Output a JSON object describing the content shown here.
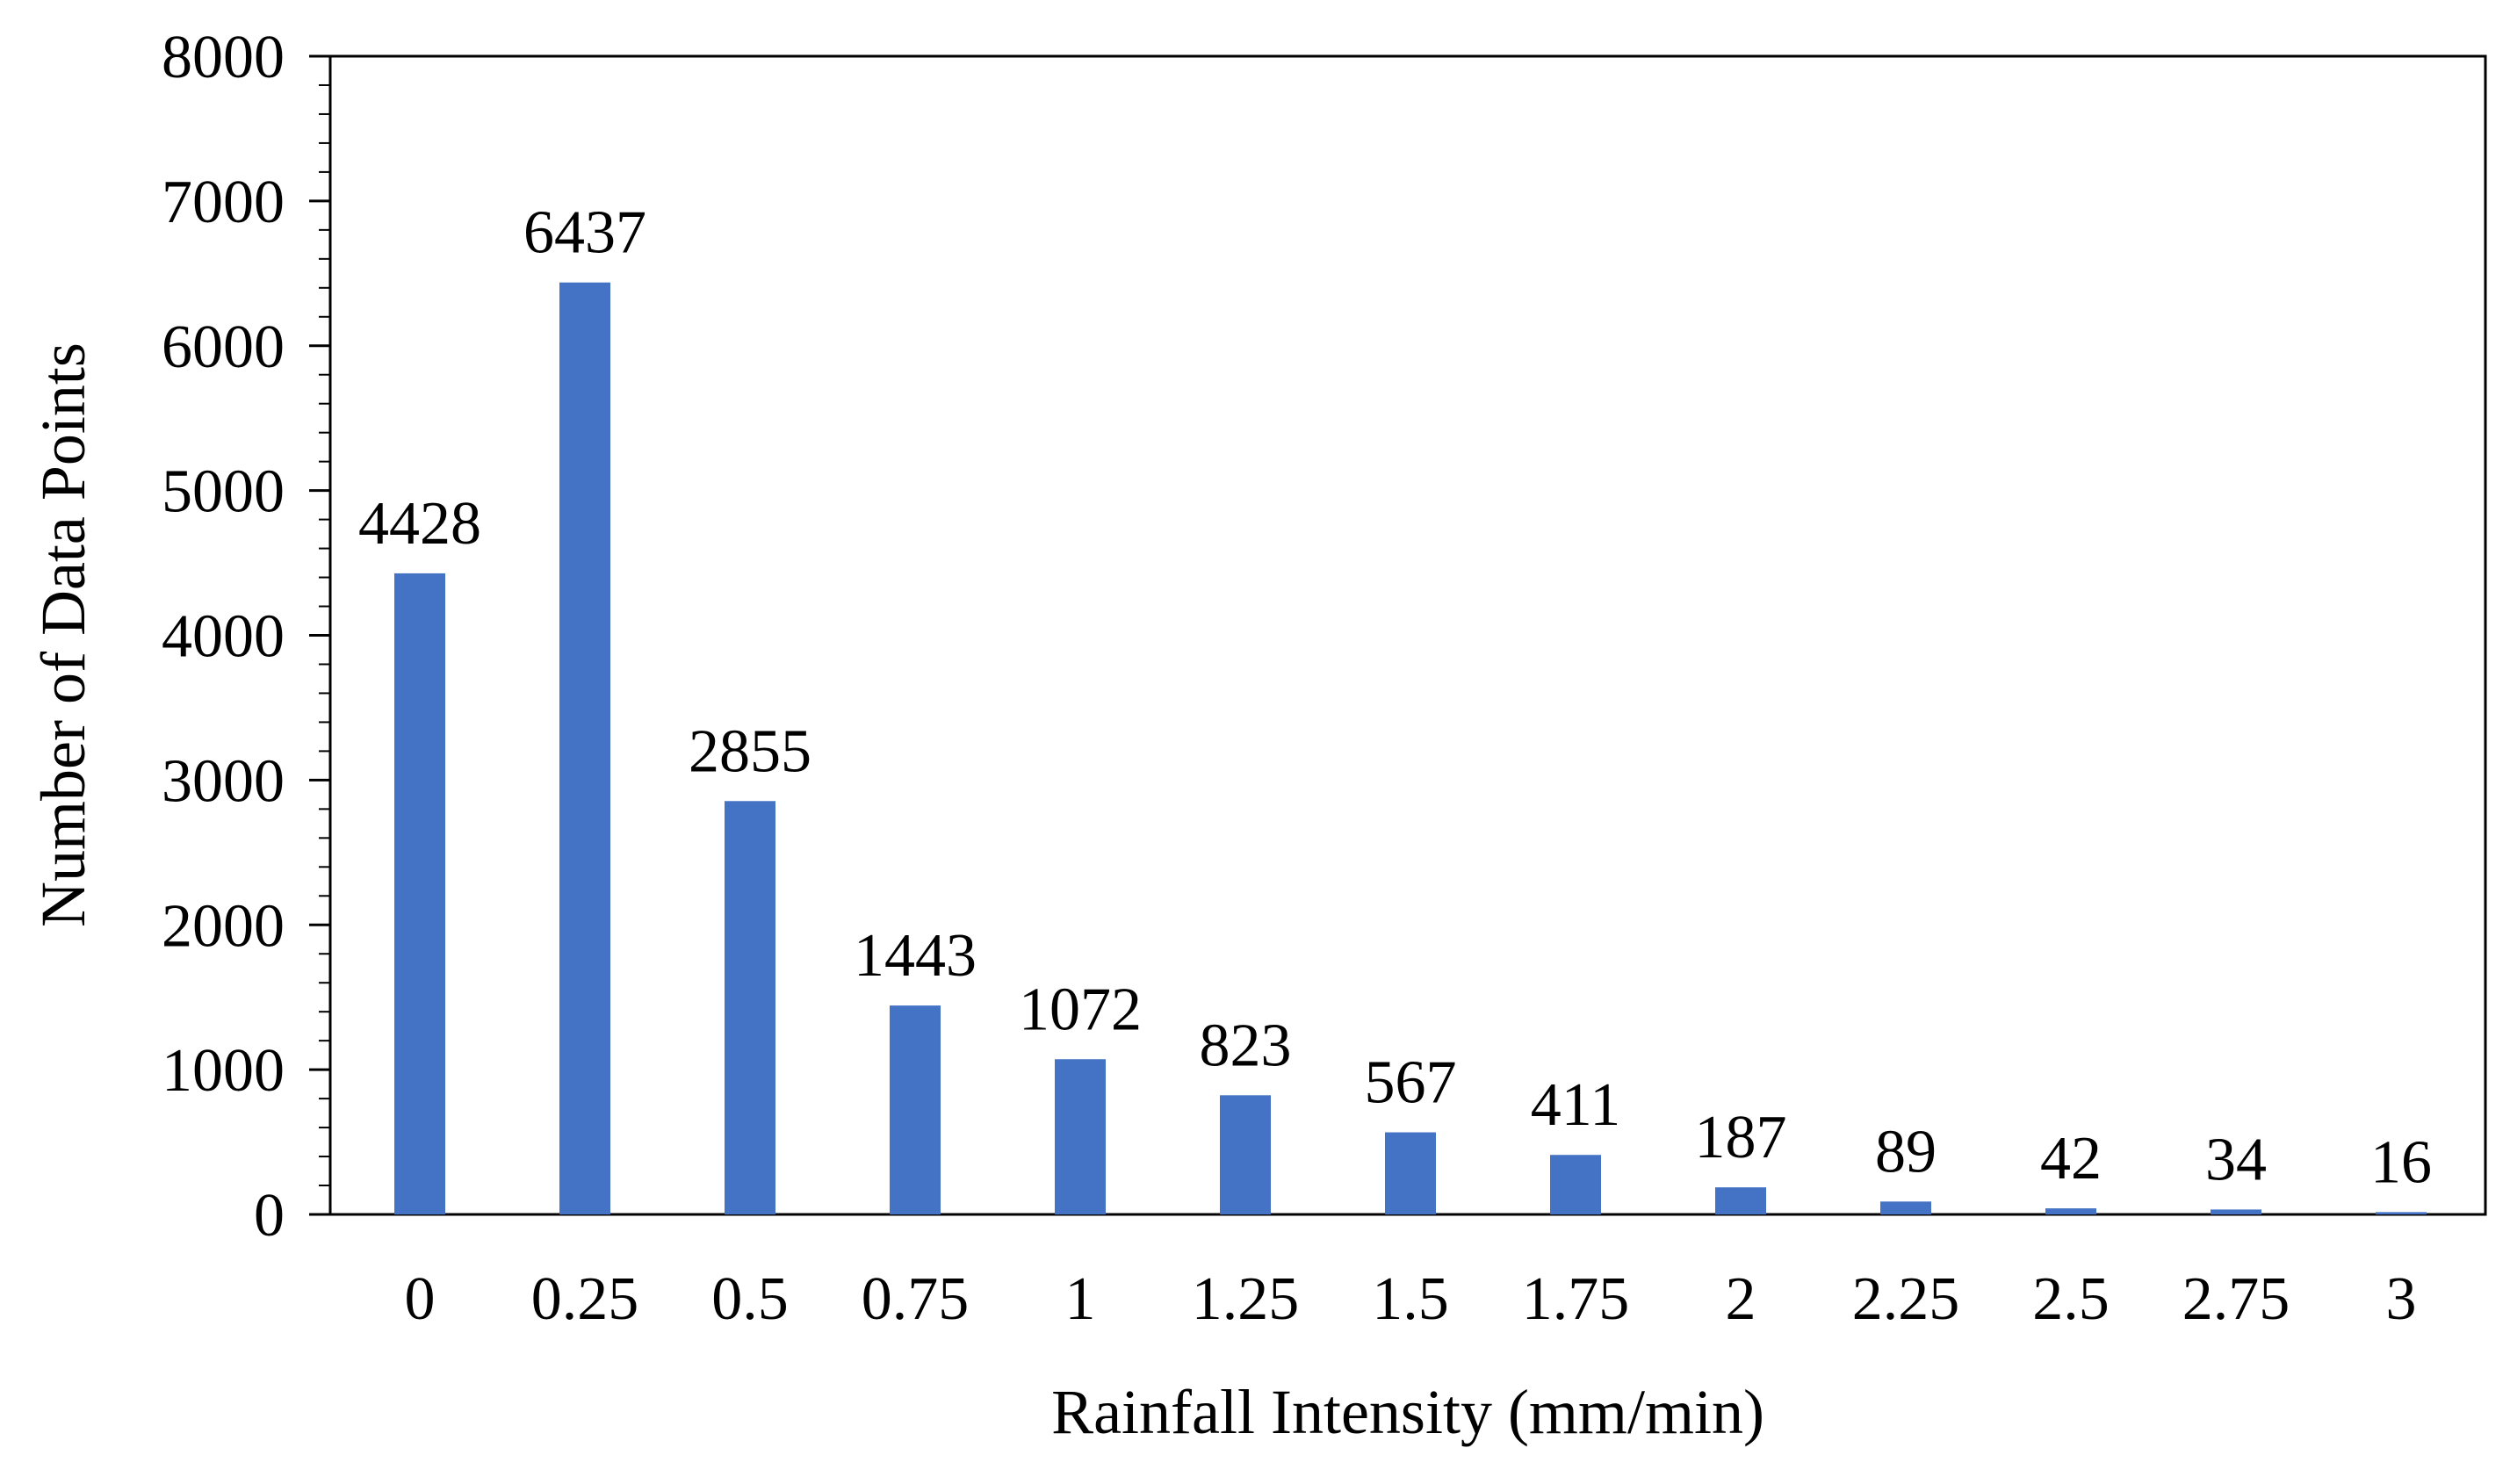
{
  "chart_data": {
    "type": "bar",
    "title": "",
    "xlabel": "Rainfall Intensity (mm/min)",
    "ylabel": "Number of Data Points",
    "categories": [
      "0",
      "0.25",
      "0.5",
      "0.75",
      "1",
      "1.25",
      "1.5",
      "1.75",
      "2",
      "2.25",
      "2.5",
      "2.75",
      "3"
    ],
    "values": [
      4428,
      6437,
      2855,
      1443,
      1072,
      823,
      567,
      411,
      187,
      89,
      42,
      34,
      16
    ],
    "ylim": [
      0,
      8000
    ],
    "yticks": [
      0,
      1000,
      2000,
      3000,
      4000,
      5000,
      6000,
      7000,
      8000
    ],
    "grid": false,
    "legend": "none",
    "bar_color": "#4472C4"
  }
}
